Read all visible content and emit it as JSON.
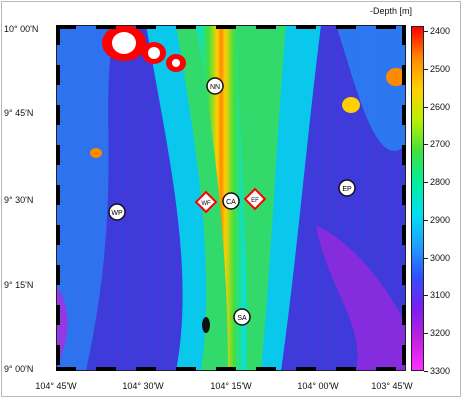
{
  "colorbar": {
    "title": "-Depth [m]",
    "ticks": [
      "2400",
      "2500",
      "2600",
      "2700",
      "2800",
      "2900",
      "3000",
      "3100",
      "3200",
      "3300"
    ],
    "range": [
      2400,
      3300
    ],
    "colors": [
      "#ff0000",
      "#ff8a00",
      "#ffd000",
      "#b8f000",
      "#40e040",
      "#00f0a0",
      "#00e0f0",
      "#20a0ff",
      "#3050ff",
      "#7820f0",
      "#c020e0",
      "#ff30ff"
    ]
  },
  "latitude_labels": [
    "10° 00'N",
    "9° 45'N",
    "9° 30'N",
    "9° 15'N",
    "9° 00'N"
  ],
  "longitude_labels": [
    "104° 45'W",
    "104° 30'W",
    "104° 15'W",
    "104° 00'W",
    "103° 45'W"
  ],
  "sites": [
    {
      "label": "NN",
      "shape": "circle"
    },
    {
      "label": "WP",
      "shape": "circle"
    },
    {
      "label": "CA",
      "shape": "circle"
    },
    {
      "label": "EP",
      "shape": "circle"
    },
    {
      "label": "SA",
      "shape": "circle"
    },
    {
      "label": "WF",
      "shape": "diamond"
    },
    {
      "label": "EF",
      "shape": "diamond"
    }
  ],
  "colors": {
    "deep_background": "#3c3cd8",
    "ridge_axis": "#ff7a00",
    "seamount_core": "#ffffff"
  }
}
